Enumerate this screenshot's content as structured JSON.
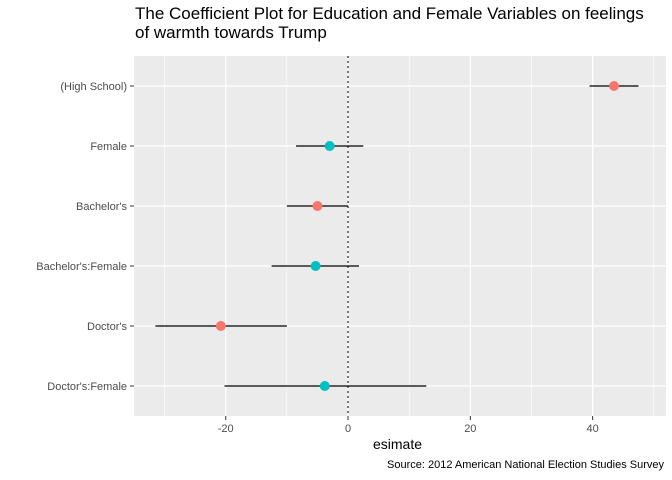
{
  "chart_data": {
    "type": "scatter",
    "title": "The Coefficient Plot for Education and Female Variables on feelings\nof warmth towards Trump",
    "xlabel": "esimate",
    "ylabel": "",
    "caption": "Source: 2012 American National Election Studies Survey",
    "categories": [
      "(High School)",
      "Female",
      "Bachelor's",
      "Bachelor's:Female",
      "Doctor's",
      "Doctor's:Female"
    ],
    "estimates": [
      43.5,
      -3.0,
      -5.0,
      -5.3,
      -20.8,
      -3.8
    ],
    "lower": [
      39.5,
      -8.5,
      -10.0,
      -12.5,
      -31.5,
      -20.2
    ],
    "upper": [
      47.5,
      2.5,
      0.0,
      1.8,
      -10.0,
      12.8
    ],
    "point_colors": [
      "#F8766D",
      "#00BFC4",
      "#F8766D",
      "#00BFC4",
      "#F8766D",
      "#00BFC4"
    ],
    "xlim": [
      -35,
      52
    ],
    "xticks": [
      -20,
      0,
      20,
      40
    ],
    "reference_line": 0,
    "grid": true,
    "panel_background": "#EBEBEB",
    "grid_color": "#FFFFFF",
    "errorbar_color": "#000000",
    "legend": "none"
  }
}
